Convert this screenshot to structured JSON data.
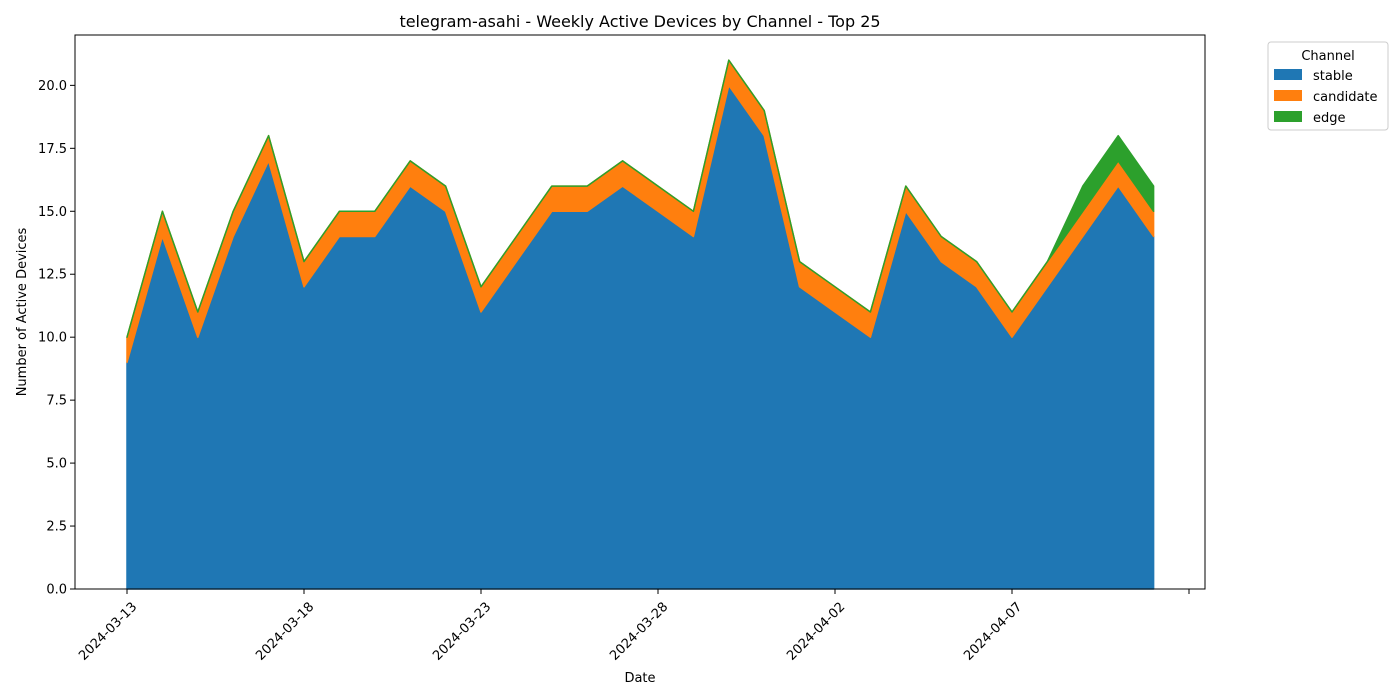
{
  "chart_data": {
    "type": "area",
    "stacked": true,
    "title": "telegram-asahi - Weekly Active Devices by Channel - Top 25",
    "xlabel": "Date",
    "ylabel": "Number of Active Devices",
    "x": [
      "2024-03-13",
      "2024-03-14",
      "2024-03-15",
      "2024-03-16",
      "2024-03-17",
      "2024-03-18",
      "2024-03-19",
      "2024-03-20",
      "2024-03-21",
      "2024-03-22",
      "2024-03-23",
      "2024-03-24",
      "2024-03-25",
      "2024-03-26",
      "2024-03-27",
      "2024-03-28",
      "2024-03-29",
      "2024-03-30",
      "2024-03-31",
      "2024-04-01",
      "2024-04-02",
      "2024-04-03",
      "2024-04-04",
      "2024-04-05",
      "2024-04-06",
      "2024-04-07",
      "2024-04-08",
      "2024-04-09",
      "2024-04-10",
      "2024-04-11"
    ],
    "x_ticks": [
      "2024-03-13",
      "2024-03-18",
      "2024-03-23",
      "2024-03-28",
      "2024-04-02",
      "2024-04-07"
    ],
    "ylim": [
      0,
      22
    ],
    "y_ticks": [
      "0.0",
      "2.5",
      "5.0",
      "7.5",
      "10.0",
      "12.5",
      "15.0",
      "17.5",
      "20.0"
    ],
    "legend_title": "Channel",
    "legend_position": "outside top-right",
    "series": [
      {
        "name": "stable",
        "color": "#1f77b4",
        "values": [
          9,
          14,
          10,
          14,
          17,
          12,
          14,
          14,
          16,
          15,
          11,
          13,
          15,
          15,
          16,
          15,
          14,
          20,
          18,
          12,
          11,
          10,
          15,
          13,
          12,
          10,
          12,
          14,
          16,
          14
        ]
      },
      {
        "name": "candidate",
        "color": "#ff7f0e",
        "values": [
          1,
          1,
          1,
          1,
          1,
          1,
          1,
          1,
          1,
          1,
          1,
          1,
          1,
          1,
          1,
          1,
          1,
          1,
          1,
          1,
          1,
          1,
          1,
          1,
          1,
          1,
          1,
          1,
          1,
          1
        ]
      },
      {
        "name": "edge",
        "color": "#2ca02c",
        "values": [
          0,
          0,
          0,
          0,
          0,
          0,
          0,
          0,
          0,
          0,
          0,
          0,
          0,
          0,
          0,
          0,
          0,
          0,
          0,
          0,
          0,
          0,
          0,
          0,
          0,
          0,
          0,
          1,
          1,
          1
        ]
      }
    ]
  }
}
